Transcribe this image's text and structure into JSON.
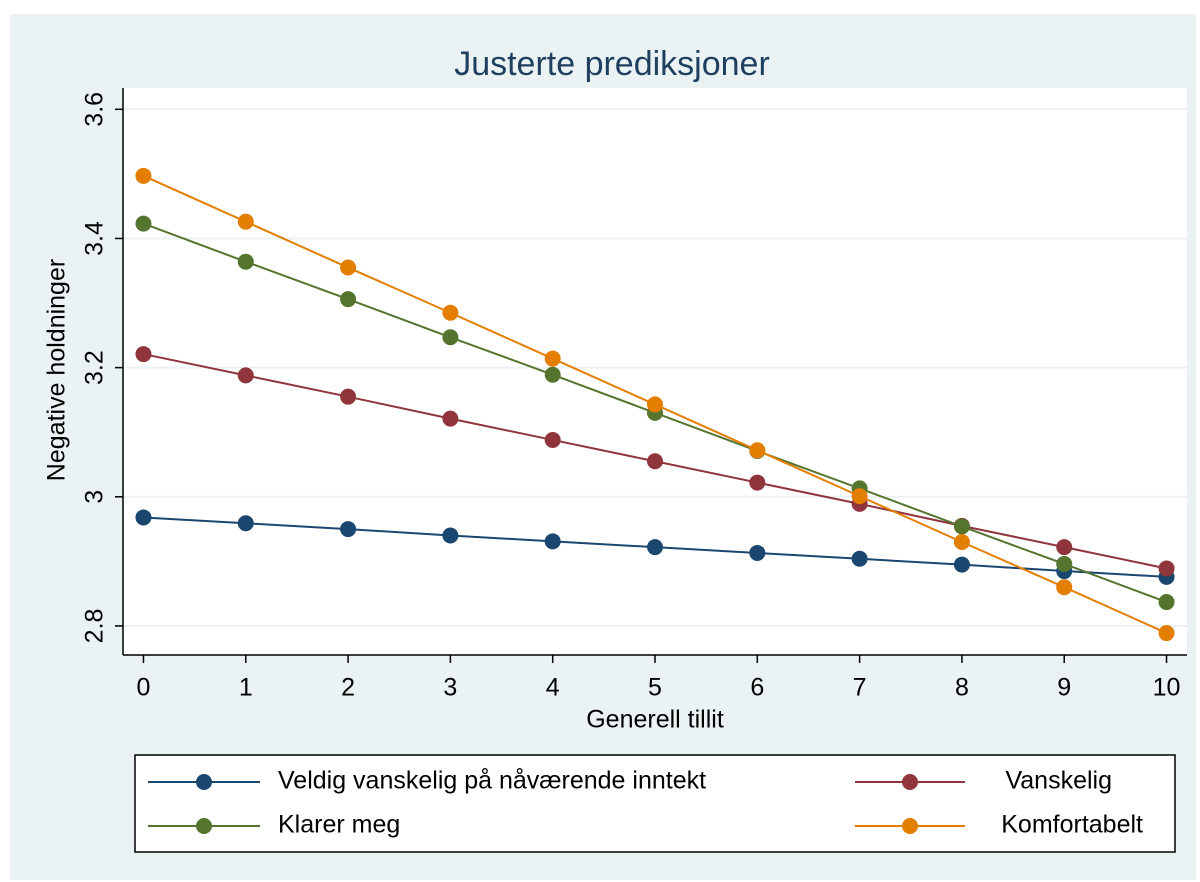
{
  "chart_data": {
    "type": "line",
    "title": "Justerte prediksjoner",
    "x_label": "Generell tillit",
    "y_label": "Negative holdninger",
    "x": [
      0,
      1,
      2,
      3,
      4,
      5,
      6,
      7,
      8,
      9,
      10
    ],
    "series": [
      {
        "name": "Veldig vanskelig på nåværende inntekt",
        "color": "#1a476f",
        "values": [
          2.968,
          2.959,
          2.95,
          2.94,
          2.931,
          2.922,
          2.913,
          2.904,
          2.895,
          2.885,
          2.876
        ]
      },
      {
        "name": "Vanskelig",
        "color": "#90353b",
        "values": [
          3.221,
          3.188,
          3.155,
          3.121,
          3.088,
          3.055,
          3.022,
          2.989,
          2.955,
          2.922,
          2.889
        ]
      },
      {
        "name": "Klarer meg",
        "color": "#55752f",
        "values": [
          3.423,
          3.364,
          3.306,
          3.247,
          3.189,
          3.13,
          3.071,
          3.013,
          2.954,
          2.896,
          2.837
        ]
      },
      {
        "name": "Komfortabelt",
        "color": "#e37e00",
        "values": [
          3.497,
          3.426,
          3.355,
          3.285,
          3.214,
          3.143,
          3.072,
          3.001,
          2.93,
          2.86,
          2.789
        ]
      }
    ],
    "xlim": [
      -0.2,
      10.2
    ],
    "xticks": [
      0,
      1,
      2,
      3,
      4,
      5,
      6,
      7,
      8,
      9,
      10
    ],
    "ylim": [
      2.755,
      3.633
    ],
    "yticks": [
      2.8,
      3,
      3.2,
      3.4,
      3.6
    ],
    "grid": true
  }
}
